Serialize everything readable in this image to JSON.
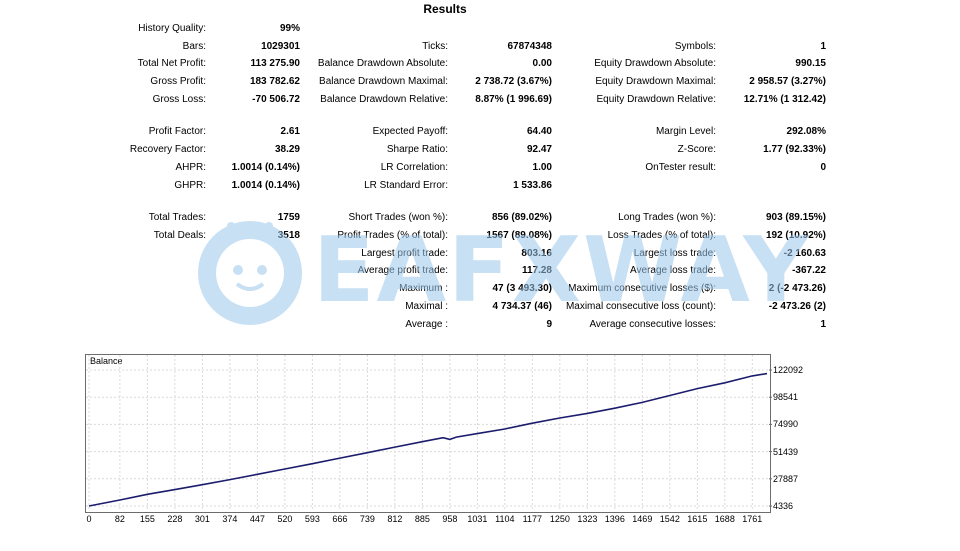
{
  "title": "Results",
  "stats": {
    "history_quality": {
      "label": "History Quality:",
      "value": "99%"
    },
    "bars": {
      "label": "Bars:",
      "value": "1029301"
    },
    "ticks": {
      "label": "Ticks:",
      "value": "67874348"
    },
    "symbols": {
      "label": "Symbols:",
      "value": "1"
    },
    "total_net_profit": {
      "label": "Total Net Profit:",
      "value": "113 275.90"
    },
    "balance_dd_absolute": {
      "label": "Balance Drawdown Absolute:",
      "value": "0.00"
    },
    "equity_dd_absolute": {
      "label": "Equity Drawdown Absolute:",
      "value": "990.15"
    },
    "gross_profit": {
      "label": "Gross Profit:",
      "value": "183 782.62"
    },
    "balance_dd_maximal": {
      "label": "Balance Drawdown Maximal:",
      "value": "2 738.72 (3.67%)"
    },
    "equity_dd_maximal": {
      "label": "Equity Drawdown Maximal:",
      "value": "2 958.57 (3.27%)"
    },
    "gross_loss": {
      "label": "Gross Loss:",
      "value": "-70 506.72"
    },
    "balance_dd_relative": {
      "label": "Balance Drawdown Relative:",
      "value": "8.87% (1 996.69)"
    },
    "equity_dd_relative": {
      "label": "Equity Drawdown Relative:",
      "value": "12.71% (1 312.42)"
    },
    "profit_factor": {
      "label": "Profit Factor:",
      "value": "2.61"
    },
    "expected_payoff": {
      "label": "Expected Payoff:",
      "value": "64.40"
    },
    "margin_level": {
      "label": "Margin Level:",
      "value": "292.08%"
    },
    "recovery_factor": {
      "label": "Recovery Factor:",
      "value": "38.29"
    },
    "sharpe_ratio": {
      "label": "Sharpe Ratio:",
      "value": "92.47"
    },
    "z_score": {
      "label": "Z-Score:",
      "value": "1.77 (92.33%)"
    },
    "ahpr": {
      "label": "AHPR:",
      "value": "1.0014 (0.14%)"
    },
    "lr_correlation": {
      "label": "LR Correlation:",
      "value": "1.00"
    },
    "ontester_result": {
      "label": "OnTester result:",
      "value": "0"
    },
    "ghpr": {
      "label": "GHPR:",
      "value": "1.0014 (0.14%)"
    },
    "lr_standard_error": {
      "label": "LR Standard Error:",
      "value": "1 533.86"
    },
    "total_trades": {
      "label": "Total Trades:",
      "value": "1759"
    },
    "short_trades": {
      "label": "Short Trades (won %):",
      "value": "856 (89.02%)"
    },
    "long_trades": {
      "label": "Long Trades (won %):",
      "value": "903 (89.15%)"
    },
    "total_deals": {
      "label": "Total Deals:",
      "value": "3518"
    },
    "profit_trades": {
      "label": "Profit Trades (% of total):",
      "value": "1567 (89.08%)"
    },
    "loss_trades": {
      "label": "Loss Trades (% of total):",
      "value": "192 (10.92%)"
    },
    "largest_profit_trade": {
      "label": "Largest profit trade:",
      "value": "803.16"
    },
    "largest_loss_trade": {
      "label": "Largest loss trade:",
      "value": "-2 160.63"
    },
    "average_profit_trade": {
      "label": "Average profit trade:",
      "value": "117.28"
    },
    "average_loss_trade": {
      "label": "Average loss trade:",
      "value": "-367.22"
    },
    "maximum": {
      "label": "Maximum :",
      "value": "47 (3 493.30)"
    },
    "max_consecutive_losses": {
      "label": "Maximum consecutive losses ($):",
      "value": "2 (-2 473.26)"
    },
    "maximal": {
      "label": "Maximal :",
      "value": "4 734.37 (46)"
    },
    "maximal_consecutive_loss": {
      "label": "Maximal consecutive loss (count):",
      "value": "-2 473.26 (2)"
    },
    "average": {
      "label": "Average :",
      "value": "9"
    },
    "average_consecutive_losses": {
      "label": "Average consecutive losses:",
      "value": "1"
    }
  },
  "watermark": {
    "text": "EAFXWAY"
  },
  "chart_data": {
    "type": "line",
    "title": "Balance",
    "series": [
      {
        "name": "Balance",
        "x": [
          0,
          82,
          155,
          228,
          301,
          374,
          447,
          520,
          593,
          666,
          739,
          812,
          885,
          940,
          958,
          975,
          1031,
          1104,
          1177,
          1250,
          1323,
          1396,
          1469,
          1542,
          1615,
          1688,
          1761,
          1800
        ],
        "y": [
          4336,
          9500,
          14500,
          18500,
          22800,
          27200,
          31800,
          36400,
          41000,
          45800,
          50500,
          55300,
          60000,
          63500,
          62000,
          64000,
          67000,
          71000,
          76000,
          80500,
          84500,
          89000,
          94000,
          100000,
          106000,
          111000,
          117000,
          119000
        ]
      }
    ],
    "y_ticks": [
      "122092",
      "98541",
      "74990",
      "51439",
      "27887",
      "4336"
    ],
    "x_ticks": [
      "0",
      "82",
      "155",
      "228",
      "301",
      "374",
      "447",
      "520",
      "593",
      "666",
      "739",
      "812",
      "885",
      "958",
      "1031",
      "1104",
      "1177",
      "1250",
      "1323",
      "1396",
      "1469",
      "1542",
      "1615",
      "1688",
      "1761"
    ],
    "xlim": [
      0,
      1800
    ],
    "ylim": [
      4336,
      122092
    ],
    "line_color": "#1c1c6e",
    "grid": true,
    "xlabel": "",
    "ylabel": ""
  }
}
